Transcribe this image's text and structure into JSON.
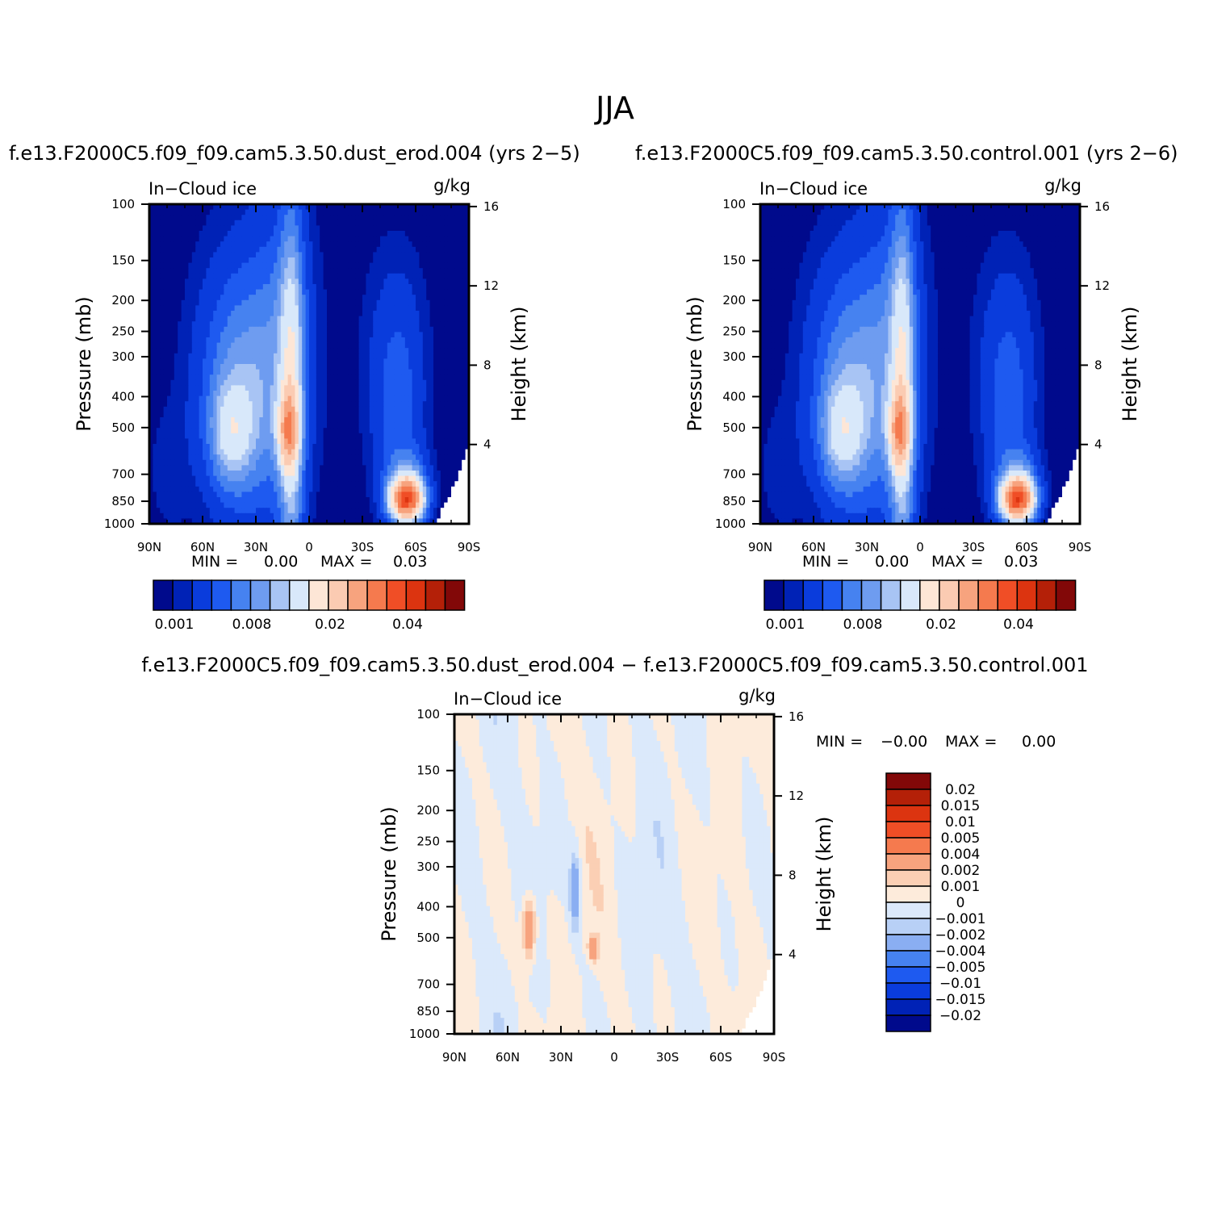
{
  "figure": {
    "season": "JJA",
    "title_left": "f.e13.F2000C5.f09_f09.cam5.3.50.dust_erod.004 (yrs 2−5)",
    "title_right": "f.e13.F2000C5.f09_f09.cam5.3.50.control.001 (yrs 2−6)",
    "title_diff": "f.e13.F2000C5.f09_f09.cam5.3.50.dust_erod.004 − f.e13.F2000C5.f09_f09.cam5.3.50.control.001"
  },
  "colors": {
    "abs_scale": [
      "#000A8C",
      "#0022B6",
      "#0A3CDC",
      "#1E5AF0",
      "#4682F0",
      "#6E9CF0",
      "#A8C4F4",
      "#D8E8FA",
      "#FDE6D6",
      "#FBCBB2",
      "#F7A37E",
      "#F57A4E",
      "#F04E26",
      "#DC3410",
      "#B42008",
      "#820808"
    ],
    "diff_scale": [
      "#000A8C",
      "#0022B6",
      "#0A3CDC",
      "#1E5AF0",
      "#4682F0",
      "#8AAEF2",
      "#B8D0F6",
      "#DBE9FB",
      "#FDEBDB",
      "#FBCFB4",
      "#F7A37E",
      "#F57A4E",
      "#F04E26",
      "#DC3410",
      "#B42008",
      "#820808"
    ]
  },
  "chart_data": [
    {
      "type": "heatmap",
      "panel": "dust_erod",
      "variable": "In−Cloud ice",
      "units": "g/kg",
      "ylabel": "Pressure (mb)",
      "ylabel_right": "Height (km)",
      "x_ticks": [
        "90N",
        "60N",
        "30N",
        "0",
        "30S",
        "60S",
        "90S"
      ],
      "y_ticks": [
        100,
        150,
        200,
        250,
        300,
        400,
        500,
        700,
        850,
        1000
      ],
      "y_ticks_right": [
        16,
        12,
        8,
        4
      ],
      "stats": {
        "min_label": "MIN =",
        "min": "0.00",
        "max_label": "MAX =",
        "max": "0.03"
      },
      "colorbar_labels": [
        "0.001",
        "0.008",
        "0.02",
        "0.04"
      ],
      "max_region": {
        "lat": "55S",
        "pressure": 850
      }
    },
    {
      "type": "heatmap",
      "panel": "control",
      "variable": "In−Cloud ice",
      "units": "g/kg",
      "ylabel": "Pressure (mb)",
      "ylabel_right": "Height (km)",
      "x_ticks": [
        "90N",
        "60N",
        "30N",
        "0",
        "30S",
        "60S",
        "90S"
      ],
      "y_ticks": [
        100,
        150,
        200,
        250,
        300,
        400,
        500,
        700,
        850,
        1000
      ],
      "y_ticks_right": [
        16,
        12,
        8,
        4
      ],
      "stats": {
        "min_label": "MIN =",
        "min": "0.00",
        "max_label": "MAX =",
        "max": "0.03"
      },
      "colorbar_labels": [
        "0.001",
        "0.008",
        "0.02",
        "0.04"
      ],
      "max_region": {
        "lat": "55S",
        "pressure": 850
      }
    },
    {
      "type": "heatmap",
      "panel": "difference",
      "variable": "In−Cloud ice",
      "units": "g/kg",
      "ylabel": "Pressure (mb)",
      "ylabel_right": "Height (km)",
      "x_ticks": [
        "90N",
        "60N",
        "30N",
        "0",
        "30S",
        "60S",
        "90S"
      ],
      "y_ticks": [
        100,
        150,
        200,
        250,
        300,
        400,
        500,
        700,
        850,
        1000
      ],
      "y_ticks_right": [
        16,
        12,
        8,
        4
      ],
      "stats": {
        "min_label": "MIN =",
        "min": "−0.00",
        "max_label": "MAX =",
        "max": "0.00"
      },
      "colorbar_labels": [
        "0.02",
        "0.015",
        "0.01",
        "0.005",
        "0.004",
        "0.002",
        "0.001",
        "0",
        "−0.001",
        "−0.002",
        "−0.004",
        "−0.005",
        "−0.01",
        "−0.015",
        "−0.02"
      ]
    }
  ]
}
